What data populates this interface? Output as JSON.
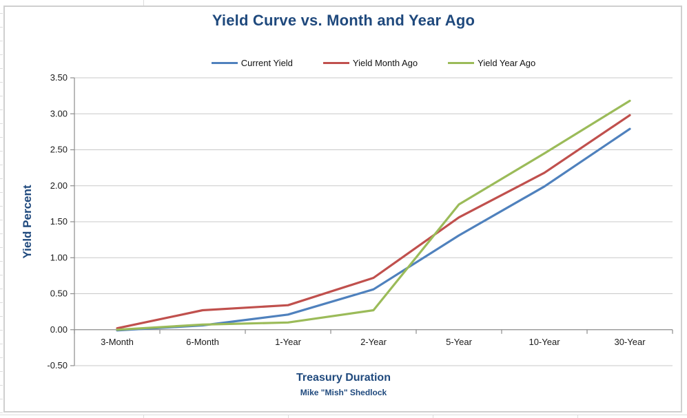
{
  "chart_data": {
    "type": "line",
    "title": "Yield Curve vs. Month and Year Ago",
    "xlabel": "Treasury Duration",
    "ylabel": "Yield Percent",
    "credit": "Mike \"Mish\" Shedlock",
    "categories": [
      "3-Month",
      "6-Month",
      "1-Year",
      "2-Year",
      "5-Year",
      "10-Year",
      "30-Year"
    ],
    "series": [
      {
        "name": "Current Yield",
        "color": "#4F81BD",
        "values": [
          -0.01,
          0.06,
          0.21,
          0.56,
          1.31,
          1.99,
          2.79
        ]
      },
      {
        "name": "Yield Month Ago",
        "color": "#C0504D",
        "values": [
          0.02,
          0.27,
          0.34,
          0.72,
          1.56,
          2.18,
          2.98
        ]
      },
      {
        "name": "Yield Year Ago",
        "color": "#9BBB59",
        "values": [
          0.0,
          0.07,
          0.1,
          0.27,
          1.74,
          2.45,
          3.18
        ]
      }
    ],
    "ylim": [
      -0.5,
      3.5
    ],
    "ytick_step": 0.5,
    "ytick_labels": [
      "3.50",
      "3.00",
      "2.50",
      "2.00",
      "1.50",
      "1.00",
      "0.50",
      "0.00",
      "-0.50"
    ],
    "grid": true,
    "legend_position": "top"
  },
  "colors": {
    "gridline": "#C8C8C8",
    "axis_line": "#8C8C8C",
    "title_text": "#1F497D",
    "chart_border": "#CFCFCF"
  }
}
